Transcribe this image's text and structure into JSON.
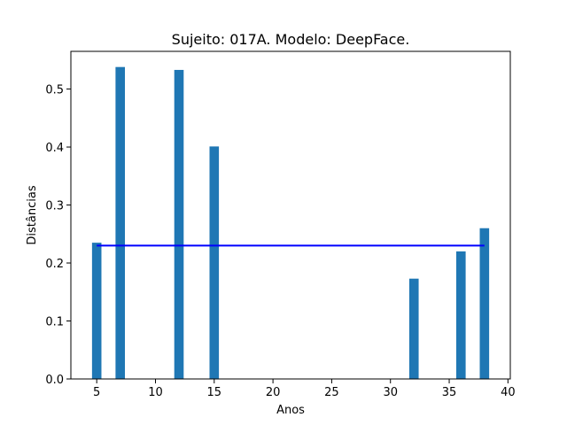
{
  "chart_data": {
    "type": "bar",
    "title": "Sujeito: 017A. Modelo: DeepFace.",
    "xlabel": "Anos",
    "ylabel": "Distâncias",
    "x": [
      5,
      7,
      12,
      15,
      32,
      36,
      38
    ],
    "values": [
      0.235,
      0.538,
      0.533,
      0.401,
      0.173,
      0.22,
      0.26
    ],
    "bar_width": 0.8,
    "xlim": [
      2.8,
      40.2
    ],
    "ylim": [
      0,
      0.565
    ],
    "xticks": [
      5,
      10,
      15,
      20,
      25,
      30,
      35,
      40
    ],
    "yticks": [
      0.0,
      0.1,
      0.2,
      0.3,
      0.4,
      0.5
    ],
    "ytick_labels": [
      "0.0",
      "0.1",
      "0.2",
      "0.3",
      "0.4",
      "0.5"
    ],
    "reference_line": {
      "x_start": 5,
      "x_end": 38,
      "y": 0.23
    },
    "grid": false,
    "colors": {
      "bar": "#1f77b4",
      "line": "#0000ff"
    }
  }
}
